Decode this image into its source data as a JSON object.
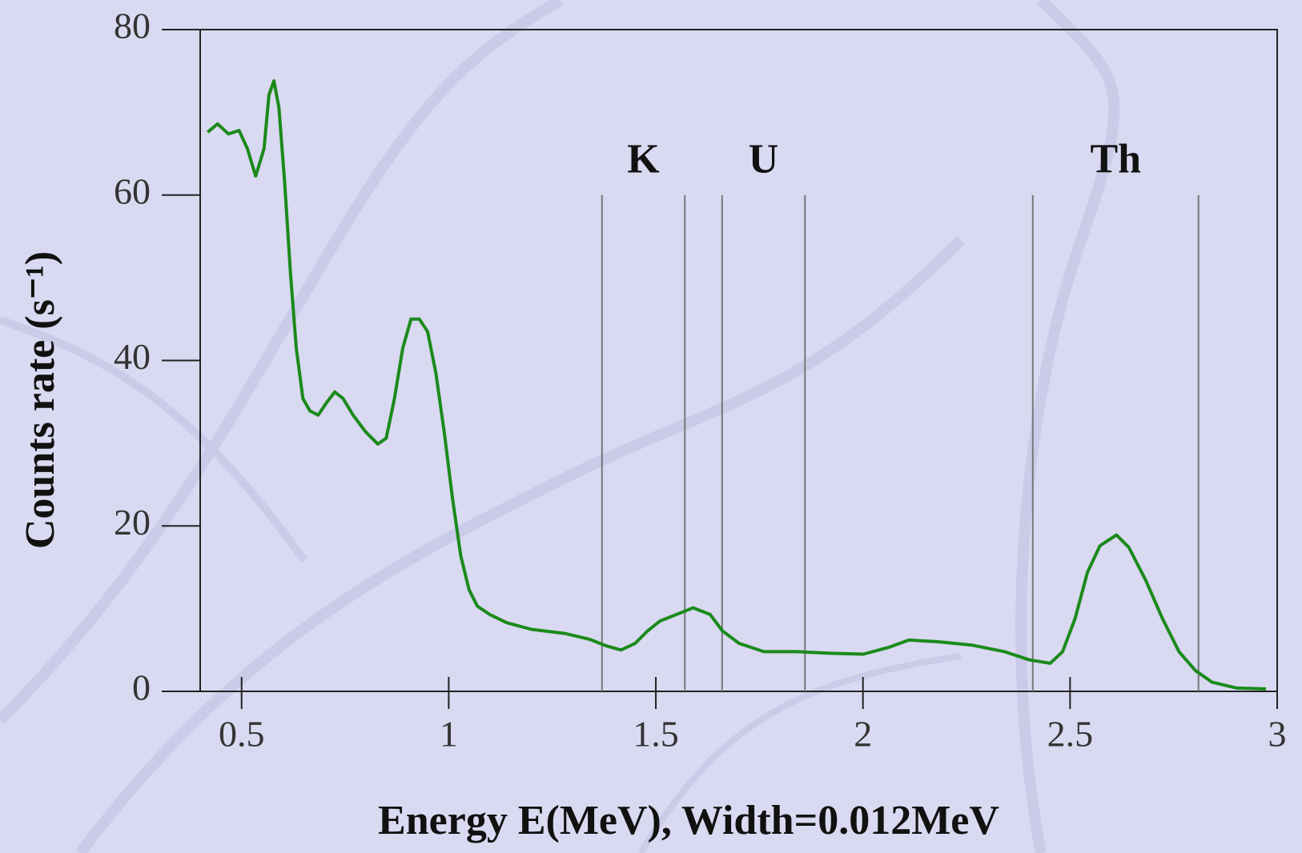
{
  "chart_data": {
    "type": "line",
    "xlabel": "Energy E(MeV), Width=0.012MeV",
    "ylabel": "Counts rate (s⁻¹)",
    "xlim": [
      0.4,
      3
    ],
    "xticks": [
      0.5,
      1,
      1.5,
      2,
      2.5,
      3
    ],
    "ylim": [
      0,
      80
    ],
    "yticks": [
      0,
      20,
      40,
      60,
      80
    ],
    "windows": [
      {
        "label": "K",
        "range": [
          1.37,
          1.57
        ]
      },
      {
        "label": "U",
        "range": [
          1.66,
          1.86
        ]
      },
      {
        "label": "Th",
        "range": [
          2.41,
          2.81
        ]
      }
    ],
    "series": [
      {
        "color": "#1b8a1b",
        "x": [
          0.418,
          0.442,
          0.468,
          0.494,
          0.514,
          0.534,
          0.554,
          0.566,
          0.578,
          0.59,
          0.604,
          0.618,
          0.632,
          0.648,
          0.665,
          0.685,
          0.705,
          0.725,
          0.745,
          0.769,
          0.799,
          0.829,
          0.849,
          0.869,
          0.889,
          0.909,
          0.929,
          0.949,
          0.969,
          0.989,
          1.009,
          1.029,
          1.049,
          1.069,
          1.099,
          1.14,
          1.2,
          1.28,
          1.34,
          1.38,
          1.416,
          1.45,
          1.48,
          1.51,
          1.55,
          1.59,
          1.631,
          1.661,
          1.701,
          1.761,
          1.841,
          1.921,
          2.001,
          2.061,
          2.111,
          2.182,
          2.262,
          2.342,
          2.402,
          2.452,
          2.482,
          2.512,
          2.542,
          2.572,
          2.612,
          2.642,
          2.683,
          2.723,
          2.763,
          2.803,
          2.843,
          2.903,
          2.973
        ],
        "values": [
          67.6,
          68.6,
          67.4,
          67.8,
          65.6,
          62.3,
          65.6,
          72.1,
          73.8,
          70.6,
          61.5,
          50.5,
          41.5,
          35.4,
          33.9,
          33.4,
          34.9,
          36.2,
          35.4,
          33.4,
          31.4,
          29.9,
          30.6,
          35.4,
          41.5,
          45.0,
          45.0,
          43.5,
          38.5,
          31.4,
          23.4,
          16.4,
          12.3,
          10.3,
          9.3,
          8.3,
          7.5,
          7.0,
          6.3,
          5.5,
          5.0,
          5.8,
          7.3,
          8.5,
          9.3,
          10.1,
          9.3,
          7.3,
          5.8,
          4.8,
          4.8,
          4.6,
          4.5,
          5.3,
          6.2,
          6.0,
          5.6,
          4.8,
          3.8,
          3.4,
          4.8,
          8.8,
          14.4,
          17.6,
          18.9,
          17.4,
          13.4,
          8.8,
          4.8,
          2.5,
          1.1,
          0.4,
          0.3
        ]
      }
    ]
  }
}
